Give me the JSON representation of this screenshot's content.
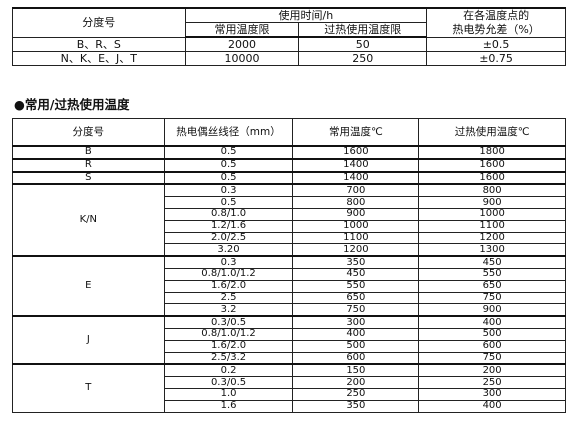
{
  "table1": {
    "headers": {
      "grade": "分度号",
      "service_time": "使用时间/h",
      "emf_tolerance_line1": "在各温度点的",
      "emf_tolerance_line2": "热电势允差（%）",
      "normal_temp_limit": "常用温度限",
      "overheat_temp_limit": "过热使用温度限"
    },
    "rows": [
      {
        "grade": "B、R、S",
        "normal": "2000",
        "overheat": "50",
        "tolerance": "±0.5"
      },
      {
        "grade": "N、K、E、J、T",
        "normal": "10000",
        "overheat": "250",
        "tolerance": "±0.75"
      }
    ]
  },
  "section_heading": "●常用/过热使用温度",
  "table2": {
    "headers": {
      "grade": "分度号",
      "wire_diameter": "热电偶丝线径（mm）",
      "normal_temp": "常用温度℃",
      "overheat_temp": "过热使用温度℃"
    },
    "groups": [
      {
        "grade": "B",
        "rows": [
          {
            "d": "0.5",
            "n": "1600",
            "o": "1800"
          }
        ]
      },
      {
        "grade": "R",
        "rows": [
          {
            "d": "0.5",
            "n": "1400",
            "o": "1600"
          }
        ]
      },
      {
        "grade": "S",
        "rows": [
          {
            "d": "0.5",
            "n": "1400",
            "o": "1600"
          }
        ]
      },
      {
        "grade": "K/N",
        "rows": [
          {
            "d": "0.3",
            "n": "700",
            "o": "800"
          },
          {
            "d": "0.5",
            "n": "800",
            "o": "900"
          },
          {
            "d": "0.8/1.0",
            "n": "900",
            "o": "1000"
          },
          {
            "d": "1.2/1.6",
            "n": "1000",
            "o": "1100"
          },
          {
            "d": "2.0/2.5",
            "n": "1100",
            "o": "1200"
          },
          {
            "d": "3.20",
            "n": "1200",
            "o": "1300"
          }
        ]
      },
      {
        "grade": "E",
        "rows": [
          {
            "d": "0.3",
            "n": "350",
            "o": "450"
          },
          {
            "d": "0.8/1.0/1.2",
            "n": "450",
            "o": "550"
          },
          {
            "d": "1.6/2.0",
            "n": "550",
            "o": "650"
          },
          {
            "d": "2.5",
            "n": "650",
            "o": "750"
          },
          {
            "d": "3.2",
            "n": "750",
            "o": "900"
          }
        ]
      },
      {
        "grade": "J",
        "rows": [
          {
            "d": "0.3/0.5",
            "n": "300",
            "o": "400"
          },
          {
            "d": "0.8/1.0/1.2",
            "n": "400",
            "o": "500"
          },
          {
            "d": "1.6/2.0",
            "n": "500",
            "o": "600"
          },
          {
            "d": "2.5/3.2",
            "n": "600",
            "o": "750"
          }
        ]
      },
      {
        "grade": "T",
        "rows": [
          {
            "d": "0.2",
            "n": "150",
            "o": "200"
          },
          {
            "d": "0.3/0.5",
            "n": "200",
            "o": "250"
          },
          {
            "d": "1.0",
            "n": "250",
            "o": "300"
          },
          {
            "d": "1.6",
            "n": "350",
            "o": "400"
          }
        ]
      }
    ]
  }
}
